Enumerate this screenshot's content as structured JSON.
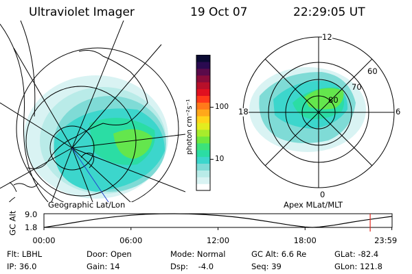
{
  "header": {
    "title": "Ultraviolet Imager",
    "date": "19 Oct 07",
    "time": "22:29:05 UT"
  },
  "colorbar": {
    "unit_label": "photon cm⁻²s⁻¹",
    "ticks": [
      {
        "value": 10,
        "label": "10"
      },
      {
        "value": 100,
        "label": "100"
      }
    ],
    "scale": "log",
    "range": [
      2.5,
      1000
    ],
    "colors": [
      "#ffffff",
      "#d9f3f3",
      "#b9ebe8",
      "#7fdbd6",
      "#3cd6cc",
      "#2bdda4",
      "#3ce27a",
      "#6ee83e",
      "#a8ec2c",
      "#e3ec1f",
      "#ffd41a",
      "#ffa81a",
      "#ff7a1a",
      "#ff3a1a",
      "#e01020",
      "#b8102a",
      "#8a0c3a",
      "#5a0a4a",
      "#2a0a50",
      "#0a0a32"
    ]
  },
  "left_panel": {
    "label": "Geographic Lat/Lon"
  },
  "right_panel": {
    "label": "Apex  MLat/MLT",
    "mlt_labels": [
      "12",
      "18",
      "6",
      "0"
    ],
    "lat_labels": [
      "60",
      "70",
      "80"
    ]
  },
  "chart_data": {
    "type": "line",
    "title": "",
    "ylabel": "GC Alt",
    "yticks": [
      "9.0",
      "1.8"
    ],
    "ylim": [
      1.8,
      9.0
    ],
    "xticks": [
      "00:00",
      "06:00",
      "12:00",
      "18:00",
      "23:59"
    ],
    "xlim_hours": [
      0,
      24
    ],
    "x": [
      0,
      1,
      2,
      3,
      4,
      5,
      6,
      7,
      8,
      9,
      10,
      11,
      12,
      13,
      14,
      15,
      16,
      17,
      18,
      18.5,
      19,
      20,
      21,
      22,
      23,
      24
    ],
    "y": [
      1.8,
      3.0,
      4.3,
      5.5,
      6.6,
      7.5,
      8.2,
      8.7,
      8.95,
      9.0,
      8.9,
      8.6,
      8.1,
      7.4,
      6.5,
      5.4,
      4.2,
      3.0,
      2.0,
      1.8,
      2.0,
      3.0,
      4.3,
      5.5,
      6.6,
      7.6
    ],
    "marker_hour": 22.49,
    "marker_color": "#e0281e"
  },
  "footer": {
    "filter": "Flt: LBHL",
    "ip": "IP: 36.0",
    "door": "Door: Open",
    "gain": "Gain: 14",
    "mode": "Mode: Normal",
    "dsp": "Dsp:    -4.0",
    "gc_alt": "GC Alt: 6.6 Re",
    "seq": "Seq: 39",
    "glat": "GLat: -82.4",
    "glon": "GLon: 121.8"
  }
}
